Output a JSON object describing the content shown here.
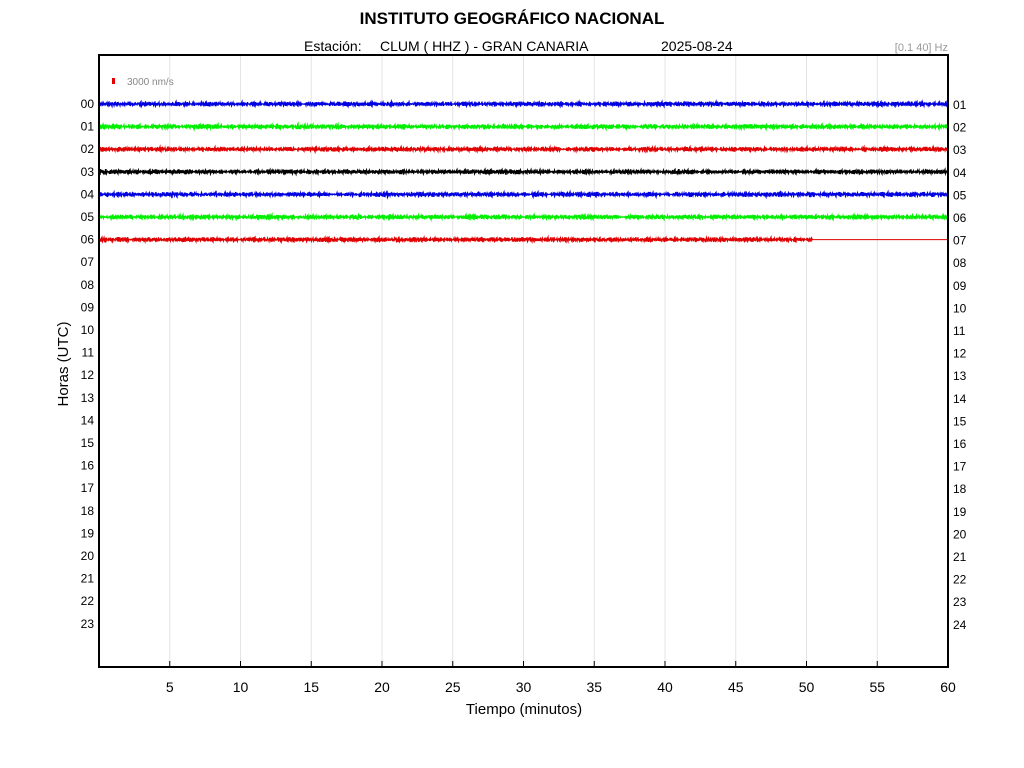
{
  "header": {
    "title": "INSTITUTO GEOGRÁFICO NACIONAL",
    "station_label": "Estación:",
    "station": "CLUM ( HHZ ) - GRAN CANARIA",
    "date": "2025-08-24",
    "frequency": "[0.1 40] Hz"
  },
  "chart_data": {
    "type": "line",
    "title": "INSTITUTO GEOGRÁFICO NACIONAL",
    "xlabel": "Tiempo (minutos)",
    "ylabel": "Horas (UTC)",
    "xlim": [
      0,
      60
    ],
    "x_ticks": [
      "5",
      "10",
      "15",
      "20",
      "25",
      "30",
      "35",
      "40",
      "45",
      "50",
      "55",
      "60"
    ],
    "x_tick_values": [
      5,
      10,
      15,
      20,
      25,
      30,
      35,
      40,
      45,
      50,
      55,
      60
    ],
    "left_hours": [
      "00",
      "01",
      "02",
      "03",
      "04",
      "05",
      "06",
      "07",
      "08",
      "09",
      "10",
      "11",
      "12",
      "13",
      "14",
      "15",
      "16",
      "17",
      "18",
      "19",
      "20",
      "21",
      "22",
      "23"
    ],
    "right_hours": [
      "01",
      "02",
      "03",
      "04",
      "05",
      "06",
      "07",
      "08",
      "09",
      "10",
      "11",
      "12",
      "13",
      "14",
      "15",
      "16",
      "17",
      "18",
      "19",
      "20",
      "21",
      "22",
      "23",
      "24"
    ],
    "scale_label": "3000 nm/s",
    "scale_color": "#e00000",
    "grid": true,
    "series": [
      {
        "hour": "00",
        "color": "#0000e0",
        "end_minute": 60
      },
      {
        "hour": "01",
        "color": "#00ee00",
        "end_minute": 60
      },
      {
        "hour": "02",
        "color": "#e00000",
        "end_minute": 60
      },
      {
        "hour": "03",
        "color": "#000000",
        "end_minute": 60
      },
      {
        "hour": "04",
        "color": "#0000e0",
        "end_minute": 60
      },
      {
        "hour": "05",
        "color": "#00ee00",
        "end_minute": 60
      },
      {
        "hour": "06",
        "color": "#e00000",
        "end_minute": 50.4
      }
    ]
  }
}
